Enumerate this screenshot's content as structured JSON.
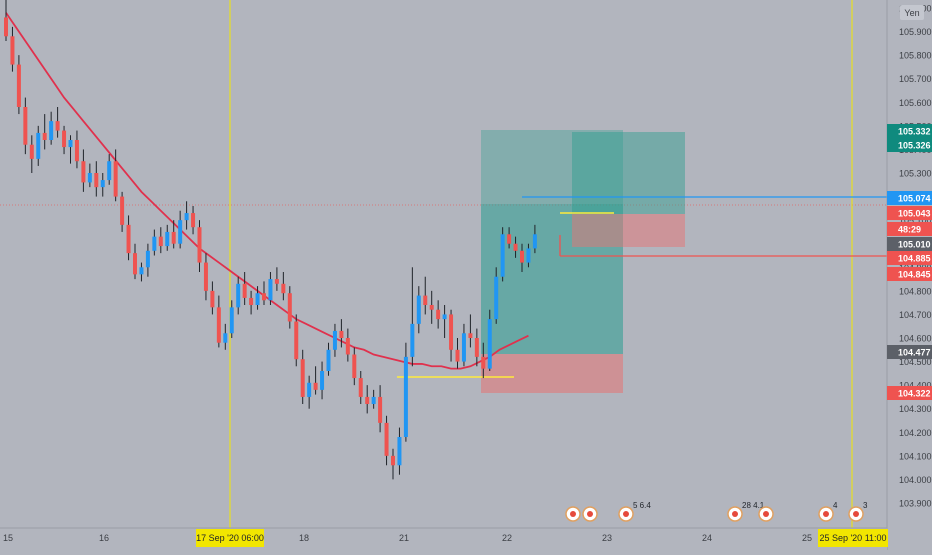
{
  "chart_data": {
    "type": "candlestick",
    "unit_label": "Yen",
    "colors": {
      "background": "#b2b5be",
      "grid": "#a8abb4",
      "up": "#2196f3",
      "down": "#ef5350",
      "wick": "#1f2329",
      "ma": "#e0314d",
      "vline": "#f2e600",
      "yellow_line": "#ffeb3b",
      "blue_line": "#2196f3",
      "red_line": "#ef5350",
      "teal_box": "#2a9d8f",
      "pink_box": "#e57373",
      "tag_teal": "#0f8a7e",
      "tag_red": "#ef5350",
      "tag_blue": "#2196f3",
      "tag_gray": "#5c6068",
      "axis_text": "#3c3f45"
    },
    "price_ticks": [
      "103.900",
      "104.000",
      "104.100",
      "104.200",
      "104.300",
      "104.400",
      "104.500",
      "104.600",
      "104.700",
      "104.800",
      "104.900",
      "105.000",
      "105.100",
      "105.200",
      "105.300",
      "105.400",
      "105.500",
      "105.600",
      "105.700",
      "105.800",
      "105.900",
      "106.000"
    ],
    "time_ticks": [
      "15",
      "16",
      "18",
      "21",
      "22",
      "23",
      "24",
      "25"
    ],
    "x_highlights": [
      "17 Sep '20  06:00",
      "25 Sep '20  11:00"
    ],
    "price_tags": [
      {
        "price": "105.332",
        "kind": "teal"
      },
      {
        "price": "105.326",
        "kind": "teal"
      },
      {
        "price": "105.074",
        "kind": "blue"
      },
      {
        "price": "105.043",
        "kind": "red"
      },
      {
        "price": "48:29",
        "kind": "red"
      },
      {
        "price": "105.010",
        "kind": "gray"
      },
      {
        "price": "104.885",
        "kind": "red"
      },
      {
        "price": "104.845",
        "kind": "red"
      },
      {
        "price": "104.477",
        "kind": "gray"
      },
      {
        "price": "104.322",
        "kind": "red"
      }
    ],
    "event_badges": [
      {
        "label": "",
        "kind": "single"
      },
      {
        "label": "",
        "kind": "single"
      },
      {
        "label": "5 6.4",
        "kind": "flag"
      },
      {
        "label": "28 4.1",
        "kind": "flag"
      },
      {
        "label": "",
        "kind": "flag"
      },
      {
        "label": "4",
        "kind": "flag"
      },
      {
        "label": "3",
        "kind": "flag"
      }
    ],
    "candles": [
      {
        "o": 105.96,
        "h": 106.05,
        "l": 105.86,
        "c": 105.88
      },
      {
        "o": 105.88,
        "h": 105.92,
        "l": 105.73,
        "c": 105.76
      },
      {
        "o": 105.76,
        "h": 105.8,
        "l": 105.55,
        "c": 105.58
      },
      {
        "o": 105.58,
        "h": 105.62,
        "l": 105.38,
        "c": 105.42
      },
      {
        "o": 105.42,
        "h": 105.46,
        "l": 105.3,
        "c": 105.36
      },
      {
        "o": 105.36,
        "h": 105.5,
        "l": 105.33,
        "c": 105.47
      },
      {
        "o": 105.47,
        "h": 105.55,
        "l": 105.4,
        "c": 105.44
      },
      {
        "o": 105.44,
        "h": 105.56,
        "l": 105.42,
        "c": 105.52
      },
      {
        "o": 105.52,
        "h": 105.58,
        "l": 105.45,
        "c": 105.48
      },
      {
        "o": 105.48,
        "h": 105.5,
        "l": 105.38,
        "c": 105.41
      },
      {
        "o": 105.41,
        "h": 105.46,
        "l": 105.34,
        "c": 105.44
      },
      {
        "o": 105.44,
        "h": 105.48,
        "l": 105.32,
        "c": 105.35
      },
      {
        "o": 105.35,
        "h": 105.4,
        "l": 105.22,
        "c": 105.26
      },
      {
        "o": 105.26,
        "h": 105.34,
        "l": 105.24,
        "c": 105.3
      },
      {
        "o": 105.3,
        "h": 105.35,
        "l": 105.2,
        "c": 105.24
      },
      {
        "o": 105.24,
        "h": 105.3,
        "l": 105.2,
        "c": 105.27
      },
      {
        "o": 105.27,
        "h": 105.38,
        "l": 105.25,
        "c": 105.35
      },
      {
        "o": 105.35,
        "h": 105.4,
        "l": 105.18,
        "c": 105.2
      },
      {
        "o": 105.2,
        "h": 105.22,
        "l": 105.05,
        "c": 105.08
      },
      {
        "o": 105.08,
        "h": 105.12,
        "l": 104.93,
        "c": 104.96
      },
      {
        "o": 104.96,
        "h": 105.0,
        "l": 104.85,
        "c": 104.87
      },
      {
        "o": 104.87,
        "h": 104.92,
        "l": 104.84,
        "c": 104.9
      },
      {
        "o": 104.9,
        "h": 105.0,
        "l": 104.86,
        "c": 104.97
      },
      {
        "o": 104.97,
        "h": 105.06,
        "l": 104.95,
        "c": 105.03
      },
      {
        "o": 105.03,
        "h": 105.07,
        "l": 104.96,
        "c": 104.99
      },
      {
        "o": 104.99,
        "h": 105.08,
        "l": 104.97,
        "c": 105.05
      },
      {
        "o": 105.05,
        "h": 105.1,
        "l": 104.98,
        "c": 105.0
      },
      {
        "o": 105.0,
        "h": 105.14,
        "l": 104.98,
        "c": 105.1
      },
      {
        "o": 105.1,
        "h": 105.18,
        "l": 105.06,
        "c": 105.13
      },
      {
        "o": 105.13,
        "h": 105.16,
        "l": 105.04,
        "c": 105.07
      },
      {
        "o": 105.07,
        "h": 105.1,
        "l": 104.88,
        "c": 104.92
      },
      {
        "o": 104.92,
        "h": 104.96,
        "l": 104.76,
        "c": 104.8
      },
      {
        "o": 104.8,
        "h": 104.84,
        "l": 104.7,
        "c": 104.73
      },
      {
        "o": 104.73,
        "h": 104.78,
        "l": 104.56,
        "c": 104.58
      },
      {
        "o": 104.58,
        "h": 104.66,
        "l": 104.55,
        "c": 104.62
      },
      {
        "o": 104.62,
        "h": 104.76,
        "l": 104.6,
        "c": 104.73
      },
      {
        "o": 104.73,
        "h": 104.86,
        "l": 104.7,
        "c": 104.83
      },
      {
        "o": 104.83,
        "h": 104.88,
        "l": 104.74,
        "c": 104.77
      },
      {
        "o": 104.77,
        "h": 104.8,
        "l": 104.7,
        "c": 104.74
      },
      {
        "o": 104.74,
        "h": 104.82,
        "l": 104.72,
        "c": 104.79
      },
      {
        "o": 104.79,
        "h": 104.84,
        "l": 104.74,
        "c": 104.76
      },
      {
        "o": 104.76,
        "h": 104.88,
        "l": 104.74,
        "c": 104.85
      },
      {
        "o": 104.85,
        "h": 104.9,
        "l": 104.8,
        "c": 104.83
      },
      {
        "o": 104.83,
        "h": 104.88,
        "l": 104.76,
        "c": 104.79
      },
      {
        "o": 104.79,
        "h": 104.82,
        "l": 104.64,
        "c": 104.67
      },
      {
        "o": 104.67,
        "h": 104.7,
        "l": 104.48,
        "c": 104.51
      },
      {
        "o": 104.51,
        "h": 104.55,
        "l": 104.32,
        "c": 104.35
      },
      {
        "o": 104.35,
        "h": 104.44,
        "l": 104.3,
        "c": 104.41
      },
      {
        "o": 104.41,
        "h": 104.48,
        "l": 104.36,
        "c": 104.38
      },
      {
        "o": 104.38,
        "h": 104.5,
        "l": 104.34,
        "c": 104.46
      },
      {
        "o": 104.46,
        "h": 104.58,
        "l": 104.44,
        "c": 104.55
      },
      {
        "o": 104.55,
        "h": 104.66,
        "l": 104.52,
        "c": 104.63
      },
      {
        "o": 104.63,
        "h": 104.68,
        "l": 104.56,
        "c": 104.6
      },
      {
        "o": 104.6,
        "h": 104.64,
        "l": 104.5,
        "c": 104.53
      },
      {
        "o": 104.53,
        "h": 104.56,
        "l": 104.4,
        "c": 104.43
      },
      {
        "o": 104.43,
        "h": 104.46,
        "l": 104.32,
        "c": 104.35
      },
      {
        "o": 104.35,
        "h": 104.4,
        "l": 104.28,
        "c": 104.32
      },
      {
        "o": 104.32,
        "h": 104.38,
        "l": 104.3,
        "c": 104.35
      },
      {
        "o": 104.35,
        "h": 104.4,
        "l": 104.2,
        "c": 104.24
      },
      {
        "o": 104.24,
        "h": 104.27,
        "l": 104.06,
        "c": 104.1
      },
      {
        "o": 104.1,
        "h": 104.13,
        "l": 104.0,
        "c": 104.06
      },
      {
        "o": 104.06,
        "h": 104.22,
        "l": 104.02,
        "c": 104.18
      },
      {
        "o": 104.18,
        "h": 104.58,
        "l": 104.16,
        "c": 104.52
      },
      {
        "o": 104.52,
        "h": 104.9,
        "l": 104.48,
        "c": 104.66
      },
      {
        "o": 104.66,
        "h": 104.82,
        "l": 104.62,
        "c": 104.78
      },
      {
        "o": 104.78,
        "h": 104.86,
        "l": 104.7,
        "c": 104.74
      },
      {
        "o": 104.74,
        "h": 104.8,
        "l": 104.66,
        "c": 104.72
      },
      {
        "o": 104.72,
        "h": 104.76,
        "l": 104.64,
        "c": 104.68
      },
      {
        "o": 104.68,
        "h": 104.74,
        "l": 104.6,
        "c": 104.7
      },
      {
        "o": 104.7,
        "h": 104.72,
        "l": 104.5,
        "c": 104.55
      },
      {
        "o": 104.55,
        "h": 104.6,
        "l": 104.47,
        "c": 104.5
      },
      {
        "o": 104.5,
        "h": 104.66,
        "l": 104.48,
        "c": 104.62
      },
      {
        "o": 104.62,
        "h": 104.7,
        "l": 104.56,
        "c": 104.6
      },
      {
        "o": 104.6,
        "h": 104.64,
        "l": 104.48,
        "c": 104.52
      },
      {
        "o": 104.52,
        "h": 104.58,
        "l": 104.43,
        "c": 104.47
      },
      {
        "o": 104.47,
        "h": 104.72,
        "l": 104.46,
        "c": 104.68
      },
      {
        "o": 104.68,
        "h": 104.9,
        "l": 104.66,
        "c": 104.86
      },
      {
        "o": 104.86,
        "h": 105.07,
        "l": 104.84,
        "c": 105.04
      },
      {
        "o": 105.04,
        "h": 105.07,
        "l": 104.98,
        "c": 105.0
      },
      {
        "o": 105.0,
        "h": 105.03,
        "l": 104.94,
        "c": 104.97
      },
      {
        "o": 104.97,
        "h": 105.0,
        "l": 104.88,
        "c": 104.92
      },
      {
        "o": 104.92,
        "h": 105.0,
        "l": 104.9,
        "c": 104.98
      },
      {
        "o": 104.98,
        "h": 105.08,
        "l": 104.96,
        "c": 105.04
      }
    ],
    "ma": [
      105.98,
      105.92,
      105.86,
      105.8,
      105.74,
      105.68,
      105.62,
      105.57,
      105.52,
      105.47,
      105.42,
      105.37,
      105.32,
      105.27,
      105.22,
      105.18,
      105.14,
      105.1,
      105.06,
      105.02,
      104.98,
      104.95,
      104.92,
      104.89,
      104.86,
      104.83,
      104.8,
      104.77,
      104.74,
      104.71,
      104.68,
      104.66,
      104.64,
      104.62,
      104.6,
      104.58,
      104.56,
      104.55,
      104.53,
      104.52,
      104.51,
      104.5,
      104.49,
      104.49,
      104.48,
      104.48,
      104.47,
      104.47,
      104.48,
      104.5,
      104.52,
      104.55,
      104.57,
      104.59,
      104.61
    ]
  }
}
